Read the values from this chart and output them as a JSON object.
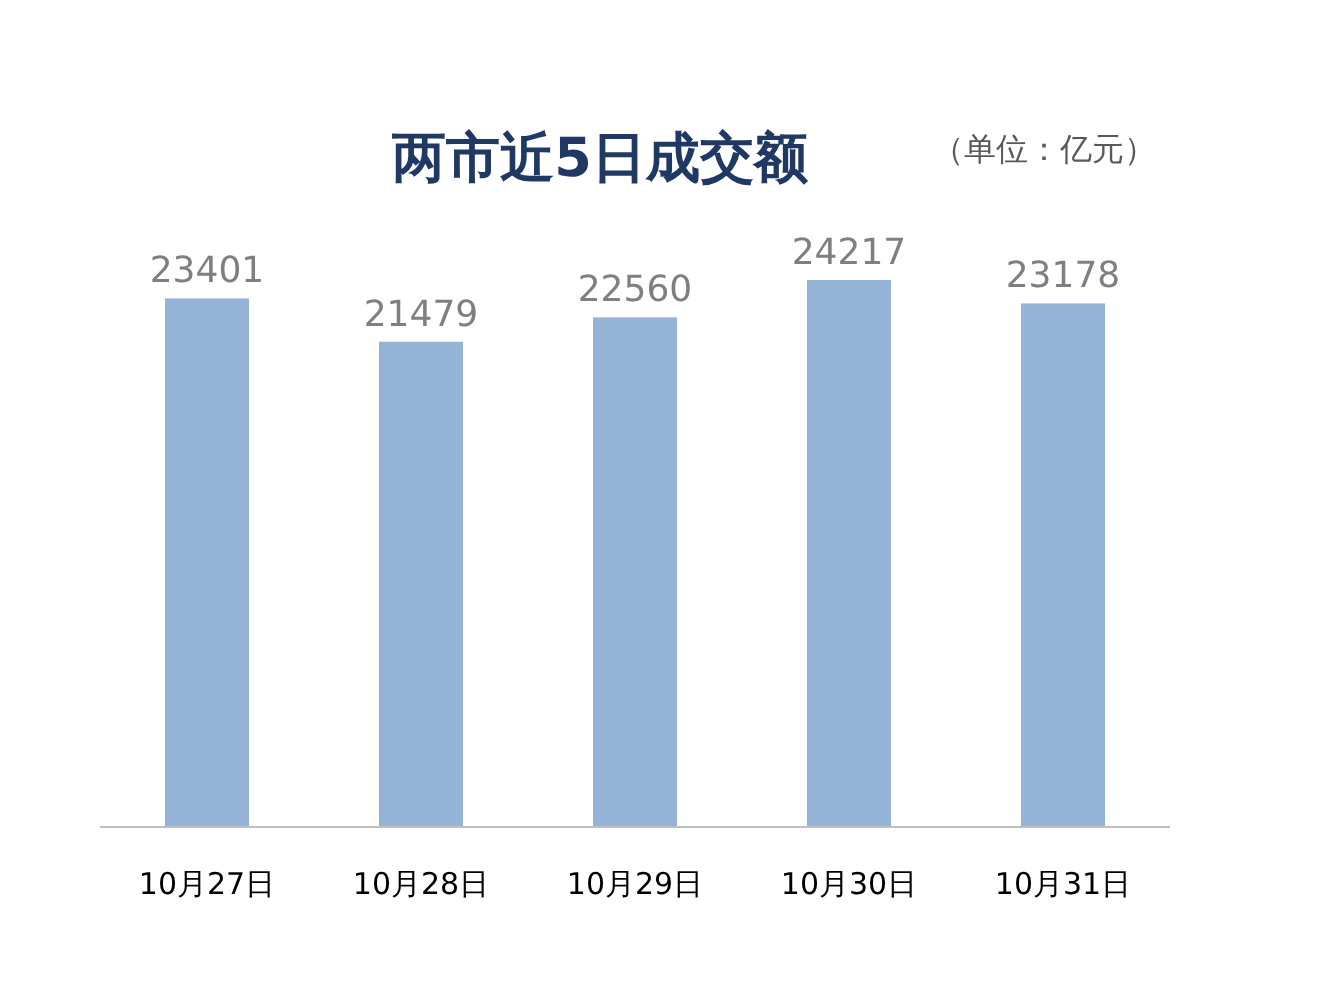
{
  "chart_data": {
    "type": "bar",
    "title": "两市近5日成交额",
    "subtitle": "（单位：亿元）",
    "categories": [
      "10月27日",
      "10月28日",
      "10月29日",
      "10月30日",
      "10月31日"
    ],
    "values": [
      23401,
      21479,
      22560,
      24217,
      23178
    ],
    "color": "#95b3d7",
    "data_labels": true
  }
}
